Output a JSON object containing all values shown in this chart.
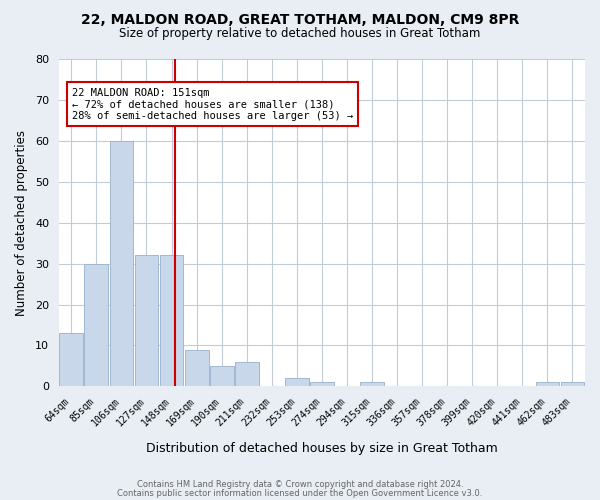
{
  "title": "22, MALDON ROAD, GREAT TOTHAM, MALDON, CM9 8PR",
  "subtitle": "Size of property relative to detached houses in Great Totham",
  "xlabel": "Distribution of detached houses by size in Great Totham",
  "ylabel": "Number of detached properties",
  "footnote1": "Contains HM Land Registry data © Crown copyright and database right 2024.",
  "footnote2": "Contains public sector information licensed under the Open Government Licence v3.0.",
  "categories": [
    "64sqm",
    "85sqm",
    "106sqm",
    "127sqm",
    "148sqm",
    "169sqm",
    "190sqm",
    "211sqm",
    "232sqm",
    "253sqm",
    "274sqm",
    "294sqm",
    "315sqm",
    "336sqm",
    "357sqm",
    "378sqm",
    "399sqm",
    "420sqm",
    "441sqm",
    "462sqm",
    "483sqm"
  ],
  "values": [
    13,
    30,
    60,
    32,
    32,
    9,
    5,
    6,
    0,
    2,
    1,
    0,
    1,
    0,
    0,
    0,
    0,
    0,
    0,
    1,
    1
  ],
  "bar_color": "#c8d8ea",
  "bar_edge_color": "#a0b8d0",
  "ylim": [
    0,
    80
  ],
  "yticks": [
    0,
    10,
    20,
    30,
    40,
    50,
    60,
    70,
    80
  ],
  "vline_color": "#cc0000",
  "annotation_text": "22 MALDON ROAD: 151sqm\n← 72% of detached houses are smaller (138)\n28% of semi-detached houses are larger (53) →",
  "annotation_box_color": "#ffffff",
  "annotation_box_edge": "#cc0000",
  "bg_color": "#e8eef4",
  "plot_bg_color": "#ffffff",
  "grid_color": "#c0ccd8"
}
